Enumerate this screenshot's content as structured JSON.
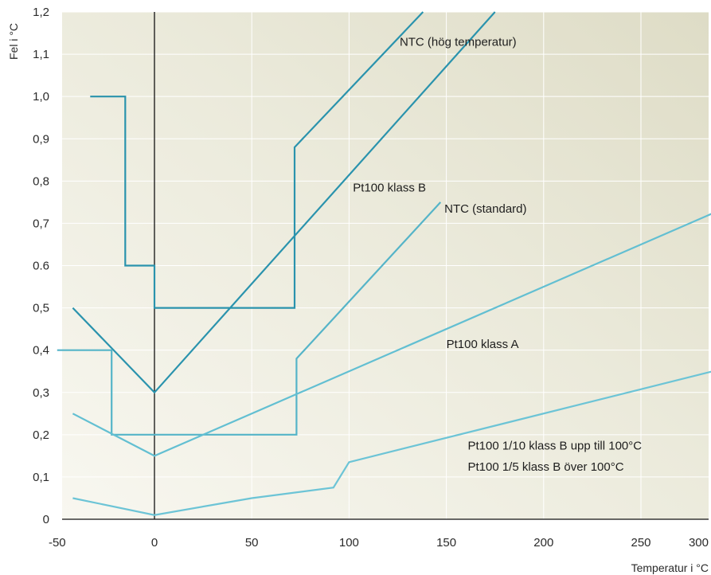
{
  "chart_data": {
    "type": "line",
    "title": "",
    "xlabel": "Temperatur i °C",
    "ylabel": "Fel i °C",
    "xlim": [
      -50,
      300
    ],
    "ylim": [
      0,
      1.2
    ],
    "grid": true,
    "legend": "none",
    "x_ticks": [
      {
        "value": -50,
        "label": "-50"
      },
      {
        "value": 0,
        "label": "0"
      },
      {
        "value": 50,
        "label": "50"
      },
      {
        "value": 100,
        "label": "100"
      },
      {
        "value": 150,
        "label": "150"
      },
      {
        "value": 200,
        "label": "200"
      },
      {
        "value": 250,
        "label": "250"
      },
      {
        "value": 300,
        "label": "300"
      }
    ],
    "y_ticks": [
      {
        "value": 0,
        "label": "0"
      },
      {
        "value": 0.1,
        "label": "0,1"
      },
      {
        "value": 0.2,
        "label": "0,2"
      },
      {
        "value": 0.3,
        "label": "0,3"
      },
      {
        "value": 0.4,
        "label": "0,4"
      },
      {
        "value": 0.5,
        "label": "0,5"
      },
      {
        "value": 0.6,
        "label": "0.6"
      },
      {
        "value": 0.7,
        "label": "0,7"
      },
      {
        "value": 0.8,
        "label": "0,8"
      },
      {
        "value": 0.9,
        "label": "0,9"
      },
      {
        "value": 1.0,
        "label": "1,0"
      },
      {
        "value": 1.1,
        "label": "1,1"
      },
      {
        "value": 1.2,
        "label": "1,2"
      }
    ],
    "series": [
      {
        "name": "NTC (hög temperatur)",
        "color": "#2a93ad",
        "x": [
          -33,
          -15,
          -15,
          0,
          0,
          72,
          72,
          138
        ],
        "y": [
          1.0,
          1.0,
          0.6,
          0.6,
          0.5,
          0.5,
          0.88,
          1.2
        ]
      },
      {
        "name": "Pt100 klass B",
        "color": "#2a93ad",
        "x": [
          -42,
          0,
          175
        ],
        "y": [
          0.5,
          0.3,
          1.2
        ]
      },
      {
        "name": "NTC (standard)",
        "color": "#55b4c8",
        "x": [
          -50,
          -22,
          -22,
          73,
          73,
          147
        ],
        "y": [
          0.4,
          0.4,
          0.2,
          0.2,
          0.38,
          0.75
        ]
      },
      {
        "name": "Pt100 klass A",
        "color": "#62bfd2",
        "x": [
          -42,
          0,
          300
        ],
        "y": [
          0.25,
          0.15,
          0.75
        ]
      },
      {
        "name": "Pt100 1/10 klass B upp till 100°C",
        "color": "#6cc4d6",
        "x": [
          -42,
          0,
          50,
          92,
          100,
          300
        ],
        "y": [
          0.05,
          0.01,
          0.05,
          0.075,
          0.135,
          0.365
        ]
      }
    ],
    "annotations": [
      {
        "text": "NTC (hög temperatur)",
        "x": 126,
        "y": 1.12
      },
      {
        "text": "Pt100 klass B",
        "x": 102,
        "y": 0.775
      },
      {
        "text": "NTC (standard)",
        "x": 149,
        "y": 0.725
      },
      {
        "text": "Pt100 klass A",
        "x": 150,
        "y": 0.405
      },
      {
        "text": "Pt100 1/10 klass B upp till 100°C",
        "x": 161,
        "y": 0.165
      },
      {
        "text": "Pt100 1/5 klass B över 100°C",
        "x": 161,
        "y": 0.115
      }
    ]
  }
}
